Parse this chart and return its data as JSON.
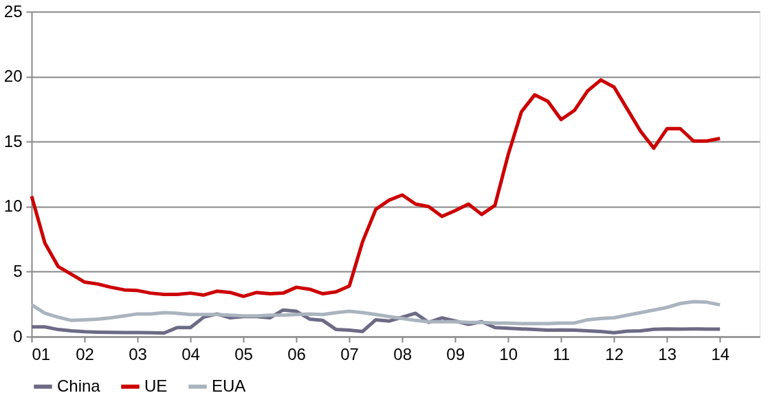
{
  "chart_data": {
    "type": "line",
    "x": [
      1,
      1.25,
      1.5,
      1.75,
      2,
      2.25,
      2.5,
      2.75,
      3,
      3.25,
      3.5,
      3.75,
      4,
      4.25,
      4.5,
      4.75,
      5,
      5.25,
      5.5,
      5.75,
      6,
      6.25,
      6.5,
      6.75,
      7,
      7.25,
      7.5,
      7.75,
      8,
      8.25,
      8.5,
      8.75,
      9,
      9.25,
      9.5,
      9.75,
      10,
      10.25,
      10.5,
      10.75,
      11,
      11.25,
      11.5,
      11.75,
      12,
      12.25,
      12.5,
      12.75,
      13,
      13.25,
      13.5,
      13.75,
      14
    ],
    "series": [
      {
        "name": "China",
        "color": "#6b6b85",
        "values": [
          0.75,
          0.75,
          0.55,
          0.45,
          0.38,
          0.35,
          0.33,
          0.32,
          0.32,
          0.3,
          0.28,
          0.7,
          0.7,
          1.5,
          1.75,
          1.45,
          1.55,
          1.55,
          1.45,
          2.05,
          1.95,
          1.35,
          1.25,
          0.55,
          0.5,
          0.4,
          1.3,
          1.2,
          1.5,
          1.8,
          1.1,
          1.45,
          1.2,
          0.95,
          1.15,
          0.7,
          0.65,
          0.6,
          0.55,
          0.5,
          0.52,
          0.5,
          0.45,
          0.4,
          0.3,
          0.42,
          0.45,
          0.57,
          0.6,
          0.58,
          0.6,
          0.58,
          0.58
        ]
      },
      {
        "name": "UE",
        "color": "#cc0000",
        "values": [
          10.8,
          7.2,
          5.4,
          4.8,
          4.2,
          4.05,
          3.8,
          3.6,
          3.55,
          3.35,
          3.25,
          3.25,
          3.35,
          3.2,
          3.5,
          3.4,
          3.1,
          3.4,
          3.3,
          3.35,
          3.8,
          3.65,
          3.3,
          3.45,
          3.9,
          7.3,
          9.8,
          10.5,
          10.9,
          10.2,
          10.0,
          9.25,
          9.7,
          10.2,
          9.4,
          10.1,
          14.0,
          17.3,
          18.6,
          18.1,
          16.7,
          17.4,
          18.9,
          19.75,
          19.2,
          17.5,
          15.8,
          14.5,
          16.0,
          16.0,
          15.05,
          15.05,
          15.25
        ]
      },
      {
        "name": "EUA",
        "color": "#aab4be",
        "values": [
          2.45,
          1.8,
          1.5,
          1.25,
          1.3,
          1.35,
          1.45,
          1.6,
          1.75,
          1.75,
          1.85,
          1.8,
          1.7,
          1.7,
          1.7,
          1.65,
          1.6,
          1.6,
          1.65,
          1.65,
          1.7,
          1.75,
          1.7,
          1.85,
          1.95,
          1.85,
          1.7,
          1.55,
          1.4,
          1.25,
          1.15,
          1.15,
          1.15,
          1.1,
          1.1,
          1.05,
          1.05,
          1.0,
          1.0,
          1.0,
          1.05,
          1.05,
          1.3,
          1.4,
          1.45,
          1.65,
          1.85,
          2.05,
          2.25,
          2.55,
          2.7,
          2.65,
          2.45
        ]
      }
    ],
    "xlim": [
      1,
      14.75
    ],
    "xticks": [
      {
        "value": 1,
        "label": "01"
      },
      {
        "value": 2,
        "label": "02"
      },
      {
        "value": 3,
        "label": "03"
      },
      {
        "value": 4,
        "label": "04"
      },
      {
        "value": 5,
        "label": "05"
      },
      {
        "value": 6,
        "label": "06"
      },
      {
        "value": 7,
        "label": "07"
      },
      {
        "value": 8,
        "label": "08"
      },
      {
        "value": 9,
        "label": "09"
      },
      {
        "value": 10,
        "label": "10"
      },
      {
        "value": 11,
        "label": "11"
      },
      {
        "value": 12,
        "label": "12"
      },
      {
        "value": 13,
        "label": "13"
      },
      {
        "value": 14,
        "label": "14"
      }
    ],
    "ylim": [
      0,
      25
    ],
    "yticks": [
      0,
      5,
      10,
      15,
      20,
      25
    ],
    "grid": "y",
    "legend": "bottom",
    "marker": "none",
    "line_style": "solid"
  }
}
